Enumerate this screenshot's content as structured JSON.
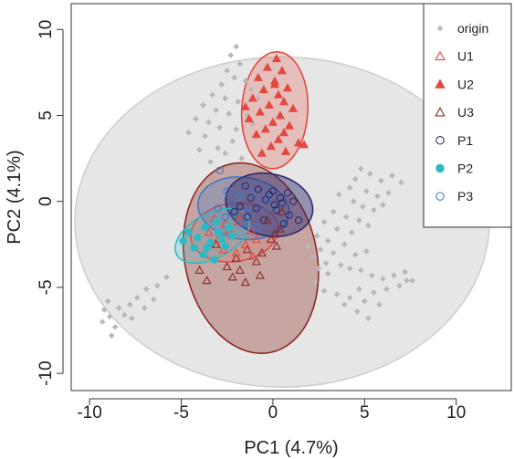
{
  "chart_data": {
    "type": "scatter",
    "title": "",
    "xlabel": "PC1 (4.7%)",
    "ylabel": "PC2 (4.1%)",
    "xlim": [
      -11,
      13
    ],
    "ylim": [
      -11,
      11.5
    ],
    "xticks": [
      "-10",
      "-5",
      "0",
      "5",
      "10"
    ],
    "xtick_values": [
      -10,
      -5,
      0,
      5,
      10
    ],
    "yticks": [
      "-10",
      "-5",
      "0",
      "5",
      "10"
    ],
    "ytick_values": [
      -10,
      -5,
      0,
      5,
      10
    ],
    "grid": false,
    "legend_position": "top-right",
    "series": [
      {
        "name": "origin",
        "marker": "diamond",
        "filled": true,
        "color": "#b8b8b8",
        "ellipse": {
          "cx": 0.5,
          "cy": -1.2,
          "rx": 11.3,
          "ry": 9.6,
          "angle": 0,
          "stroke": "#cfcfcf",
          "fill": "#e6e6e6"
        },
        "points": [
          [
            -2,
            9
          ],
          [
            -2.3,
            8.5
          ],
          [
            -1.8,
            8
          ],
          [
            -2.5,
            7.6
          ],
          [
            -2.1,
            7.2
          ],
          [
            -1.5,
            7
          ],
          [
            -2.8,
            6.8
          ],
          [
            -1.2,
            6.5
          ],
          [
            -3.3,
            6.2
          ],
          [
            -2.6,
            6
          ],
          [
            -1.9,
            5.8
          ],
          [
            -3.8,
            5.6
          ],
          [
            -3.1,
            5.3
          ],
          [
            -2.4,
            5.1
          ],
          [
            -1.4,
            5
          ],
          [
            -4.2,
            4.8
          ],
          [
            -3.5,
            4.6
          ],
          [
            -2.9,
            4.3
          ],
          [
            -2,
            4.2
          ],
          [
            -4.6,
            4
          ],
          [
            -3.7,
            3.8
          ],
          [
            -2.2,
            3.5
          ],
          [
            -3,
            3.1
          ],
          [
            -4,
            3
          ],
          [
            -2.6,
            2.8
          ],
          [
            -1.7,
            2.5
          ],
          [
            -3.4,
            2.3
          ],
          [
            -0.8,
            6
          ],
          [
            -1.1,
            4.5
          ],
          [
            4.8,
            1.9
          ],
          [
            5.3,
            1.6
          ],
          [
            4.5,
            1.3
          ],
          [
            5.9,
            1.2
          ],
          [
            6.5,
            1.5
          ],
          [
            7,
            1.1
          ],
          [
            4.2,
            0.8
          ],
          [
            5.1,
            0.6
          ],
          [
            5.7,
            0.3
          ],
          [
            6.3,
            0.5
          ],
          [
            3.6,
            0.4
          ],
          [
            4.4,
            0
          ],
          [
            4.9,
            -0.3
          ],
          [
            5.5,
            -0.5
          ],
          [
            6,
            -0.2
          ],
          [
            3.3,
            -0.6
          ],
          [
            4,
            -0.9
          ],
          [
            4.7,
            -1.1
          ],
          [
            5.2,
            -1.4
          ],
          [
            2.8,
            -1.2
          ],
          [
            3.5,
            -1.6
          ],
          [
            4.3,
            -1.8
          ],
          [
            2.4,
            -2
          ],
          [
            3,
            -2.3
          ],
          [
            3.9,
            -2.5
          ],
          [
            2.6,
            -2.8
          ],
          [
            3.3,
            -3
          ],
          [
            2.2,
            -3.2
          ],
          [
            4.5,
            -3.1
          ],
          [
            5.1,
            -2.9
          ],
          [
            2.9,
            -3.6
          ],
          [
            3.7,
            -3.7
          ],
          [
            4.2,
            -3.9
          ],
          [
            3,
            -4.2
          ],
          [
            4.8,
            -4
          ],
          [
            5.4,
            -4.3
          ],
          [
            6,
            -4.5
          ],
          [
            6.6,
            -4.3
          ],
          [
            7.2,
            -4.1
          ],
          [
            7.6,
            -4.6
          ],
          [
            6.9,
            -4.9
          ],
          [
            6.2,
            -5.1
          ],
          [
            5.5,
            -5.3
          ],
          [
            4.7,
            -5.1
          ],
          [
            4.2,
            -5.6
          ],
          [
            5,
            -5.8
          ],
          [
            5.8,
            -6
          ],
          [
            4.6,
            -6.4
          ],
          [
            5.2,
            -6.8
          ],
          [
            3.9,
            -6
          ],
          [
            3.5,
            -5.4
          ],
          [
            2.3,
            -4.7
          ],
          [
            2.8,
            -5.2
          ],
          [
            2.5,
            -3.9
          ],
          [
            1.9,
            -2.6
          ],
          [
            7.3,
            -4.6
          ],
          [
            -9.2,
            -6.3
          ],
          [
            -8.9,
            -6.7
          ],
          [
            -8.4,
            -6.2
          ],
          [
            -9.3,
            -7
          ],
          [
            -8.6,
            -7.3
          ],
          [
            -7.8,
            -6
          ],
          [
            -8.1,
            -6.6
          ],
          [
            -7.4,
            -5.6
          ],
          [
            -6.9,
            -5.1
          ],
          [
            -6.3,
            -4.9
          ],
          [
            -5.8,
            -4.4
          ],
          [
            -7,
            -6.2
          ],
          [
            -6.5,
            -5.7
          ],
          [
            -8.8,
            -7.8
          ],
          [
            -9,
            -5.8
          ],
          [
            -7.7,
            -6.8
          ]
        ]
      },
      {
        "name": "U1",
        "marker": "triangle",
        "filled": false,
        "color": "#e24a40",
        "ellipse": {
          "cx": -2.1,
          "cy": -1.8,
          "rx": 2.4,
          "ry": 1.7,
          "angle": 8,
          "stroke": "#e24a40",
          "fill": "rgba(226,74,64,0.15)"
        },
        "points": [
          [
            -3.2,
            -1
          ],
          [
            -2.6,
            -1.3
          ],
          [
            -1.9,
            -1.2
          ],
          [
            -1.2,
            -1.7
          ],
          [
            -2.2,
            -2
          ],
          [
            -3,
            -2.2
          ],
          [
            -1.5,
            -2.5
          ],
          [
            -2.7,
            -2.8
          ],
          [
            -0.9,
            -2.2
          ],
          [
            -3.5,
            -1.8
          ],
          [
            -2,
            -3
          ],
          [
            -1.1,
            -3.2
          ],
          [
            -2.4,
            -1.7
          ],
          [
            -1.7,
            -0.8
          ]
        ]
      },
      {
        "name": "U2",
        "marker": "triangle",
        "filled": true,
        "color": "#e24a40",
        "ellipse": {
          "cx": 0.1,
          "cy": 5.3,
          "rx": 1.8,
          "ry": 3.4,
          "angle": -3,
          "stroke": "#e24a40",
          "fill": "rgba(226,74,64,0.25)"
        },
        "points": [
          [
            0.2,
            8.3
          ],
          [
            -0.3,
            7.8
          ],
          [
            0.5,
            7.6
          ],
          [
            -0.8,
            7.2
          ],
          [
            0.1,
            7
          ],
          [
            0.8,
            6.6
          ],
          [
            -0.5,
            6.5
          ],
          [
            0.3,
            6.2
          ],
          [
            -1.1,
            6
          ],
          [
            0.6,
            5.8
          ],
          [
            -0.2,
            5.6
          ],
          [
            1.1,
            5.4
          ],
          [
            -0.7,
            5.2
          ],
          [
            0.4,
            5
          ],
          [
            -1.3,
            4.8
          ],
          [
            0,
            4.6
          ],
          [
            0.9,
            4.4
          ],
          [
            -0.4,
            4.2
          ],
          [
            0.6,
            4
          ],
          [
            -0.9,
            3.9
          ],
          [
            0.3,
            3.6
          ],
          [
            1.4,
            3.4
          ],
          [
            -0.1,
            3.2
          ],
          [
            0.7,
            2.9
          ],
          [
            1.7,
            3.3
          ],
          [
            -1.5,
            5.5
          ],
          [
            -0.6,
            2.8
          ],
          [
            0.1,
            6.8
          ]
        ]
      },
      {
        "name": "U3",
        "marker": "triangle",
        "filled": false,
        "color": "#8b2a22",
        "ellipse": {
          "cx": -1.2,
          "cy": -3.3,
          "rx": 3.6,
          "ry": 5.6,
          "angle": 12,
          "stroke": "#8b2a22",
          "fill": "rgba(139,42,34,0.35)"
        },
        "points": [
          [
            -2.5,
            -3.8
          ],
          [
            -1.8,
            -4
          ],
          [
            -0.9,
            -3.5
          ],
          [
            -0.1,
            -2.2
          ],
          [
            0.4,
            -1.6
          ],
          [
            -3.1,
            -2.5
          ],
          [
            -1.4,
            -2.8
          ],
          [
            -0.6,
            -3
          ],
          [
            0.2,
            -2.6
          ],
          [
            -2.2,
            -4.4
          ],
          [
            -3.6,
            -4.6
          ],
          [
            -1.5,
            -4.7
          ],
          [
            -0.7,
            -4.3
          ],
          [
            -0.3,
            -1.1
          ],
          [
            0.5,
            -0.6
          ],
          [
            -4,
            -4
          ],
          [
            -2,
            -3.3
          ],
          [
            0.1,
            -1.9
          ]
        ]
      },
      {
        "name": "P1",
        "marker": "circle",
        "filled": false,
        "color": "#2d2a6e",
        "ellipse": {
          "cx": -0.2,
          "cy": -0.2,
          "rx": 2.4,
          "ry": 1.8,
          "angle": -12,
          "stroke": "#2d2a6e",
          "fill": "rgba(45,42,110,0.45)"
        },
        "points": [
          [
            -1.5,
            0.9
          ],
          [
            -0.8,
            0.7
          ],
          [
            0,
            0.6
          ],
          [
            0.8,
            0.5
          ],
          [
            -1.2,
            0.2
          ],
          [
            -0.4,
            0.1
          ],
          [
            0.4,
            0.2
          ],
          [
            1.1,
            0
          ],
          [
            -1.8,
            -0.3
          ],
          [
            -0.9,
            -0.4
          ],
          [
            0.2,
            -0.5
          ],
          [
            0.9,
            -0.8
          ],
          [
            -1.4,
            -0.9
          ],
          [
            -0.5,
            -1.1
          ],
          [
            0.6,
            -1.3
          ],
          [
            1.4,
            -1.1
          ],
          [
            -2.1,
            -0.6
          ],
          [
            0.1,
            -0.2
          ],
          [
            -0.2,
            0.4
          ],
          [
            0.5,
            -0.1
          ]
        ]
      },
      {
        "name": "P2",
        "marker": "circle",
        "filled": true,
        "color": "#2bbbc6",
        "ellipse": {
          "cx": -3.3,
          "cy": -2,
          "rx": 2.2,
          "ry": 1.3,
          "angle": 28,
          "stroke": "#2bbbc6",
          "fill": "rgba(43,187,198,0.20)"
        },
        "points": [
          [
            -4.6,
            -1.8
          ],
          [
            -4.1,
            -2.1
          ],
          [
            -3.7,
            -1.5
          ],
          [
            -3.4,
            -2.4
          ],
          [
            -3,
            -1.8
          ],
          [
            -2.6,
            -2.6
          ],
          [
            -4.3,
            -2.7
          ],
          [
            -3.8,
            -3.1
          ],
          [
            -3.2,
            -3.4
          ],
          [
            -2.8,
            -2.2
          ],
          [
            -2.4,
            -1.5
          ],
          [
            -4.9,
            -2.3
          ],
          [
            -3.6,
            -2.7
          ],
          [
            -3.1,
            -1.2
          ],
          [
            -2.2,
            -2
          ]
        ]
      },
      {
        "name": "P3",
        "marker": "circle",
        "filled": false,
        "color": "#3f79c7",
        "ellipse": {
          "cx": -1.6,
          "cy": -0.4,
          "rx": 2.5,
          "ry": 1.8,
          "angle": -8,
          "stroke": "#3f79c7",
          "fill": "rgba(63,121,199,0.30)"
        },
        "points": [
          [
            -2.9,
            1.8
          ],
          [
            -2.5,
            0.6
          ],
          [
            -1.8,
            0.3
          ],
          [
            -1.1,
            0.5
          ],
          [
            -2.2,
            -0.2
          ],
          [
            -1.4,
            -0.6
          ],
          [
            -0.6,
            -0.3
          ],
          [
            -2.6,
            -0.9
          ],
          [
            -1.7,
            -1.3
          ],
          [
            -0.9,
            -1.5
          ],
          [
            -3,
            -0.4
          ],
          [
            -0.3,
            0.2
          ]
        ]
      }
    ]
  }
}
